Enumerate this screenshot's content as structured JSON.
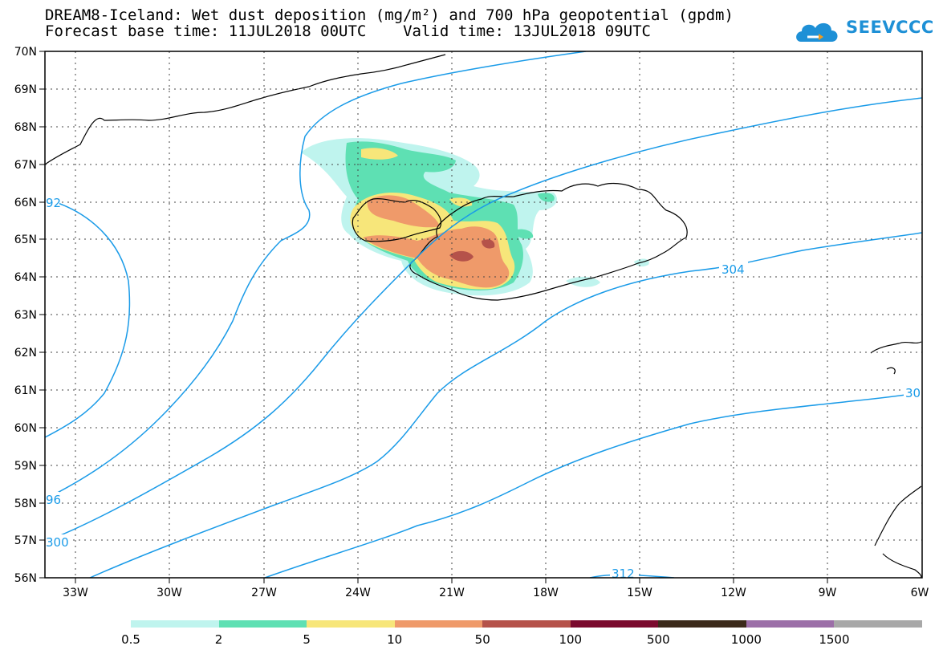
{
  "title": {
    "line1": "DREAM8-Iceland: Wet dust deposition (mg/m²) and 700 hPa geopotential (gpdm)",
    "line2": "Forecast base time: 11JUL2018 00UTC    Valid time: 13JUL2018 09UTC"
  },
  "logo": {
    "text": "SEEVCCC"
  },
  "axes": {
    "lat_labels": [
      "56N",
      "57N",
      "58N",
      "59N",
      "60N",
      "61N",
      "62N",
      "63N",
      "64N",
      "65N",
      "66N",
      "67N",
      "68N",
      "69N",
      "70N"
    ],
    "lon_labels": [
      "33W",
      "30W",
      "27W",
      "24W",
      "21W",
      "18W",
      "15W",
      "12W",
      "9W",
      "6W"
    ],
    "lat_range": [
      56,
      70
    ],
    "lon_range": [
      -34.2,
      -6
    ]
  },
  "contour_labels": [
    "92",
    "96",
    "300",
    "304",
    "30",
    "312"
  ],
  "legend": {
    "labels": [
      "0.5",
      "2",
      "5",
      "10",
      "50",
      "100",
      "500",
      "1000",
      "1500"
    ],
    "colors": [
      "#bff4ee",
      "#5ee0b3",
      "#f7e67a",
      "#ef9a6a",
      "#b5524a",
      "#7b0a2e",
      "#3b2a1a",
      "#9c6fa8",
      "#a8a8a8"
    ]
  },
  "colors": {
    "contour": "#1a9be8",
    "coast": "#000000",
    "grid": "#444444"
  }
}
